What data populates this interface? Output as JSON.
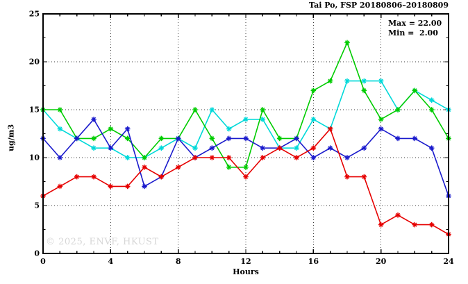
{
  "title": "Tai Po, FSP 20180806–20180809",
  "annotation": {
    "max_label": "Max = 22.00",
    "min_label": "Min =  2.00"
  },
  "watermark": "© 2025, ENVF, HKUST",
  "chart_data": {
    "type": "line",
    "title": "Tai Po, FSP 20180806–20180809",
    "xlabel": "Hours",
    "ylabel": "ug/m3",
    "xlim": [
      0,
      24
    ],
    "ylim": [
      0,
      25
    ],
    "x_major_ticks": [
      0,
      4,
      8,
      12,
      16,
      20,
      24
    ],
    "x_minor_step": 1,
    "y_major_ticks": [
      0,
      5,
      10,
      15,
      20,
      25
    ],
    "y_minor_step": 2.5,
    "grid_x_values": [
      4,
      8,
      12,
      16,
      20
    ],
    "grid_y_values": [
      5,
      10,
      15,
      20
    ],
    "grid": "dotted",
    "legend": "none",
    "marker": "asterisk",
    "stats": {
      "max": 22.0,
      "min": 2.0
    },
    "x": [
      0,
      1,
      2,
      3,
      4,
      5,
      6,
      7,
      8,
      9,
      10,
      11,
      12,
      13,
      14,
      15,
      16,
      17,
      18,
      19,
      20,
      21,
      22,
      23,
      24
    ],
    "series": [
      {
        "name": "cyan",
        "color": "#00d9d9",
        "values": [
          15,
          13,
          12,
          11,
          11,
          10,
          10,
          11,
          12,
          11,
          15,
          13,
          14,
          14,
          11,
          11,
          14,
          13,
          18,
          18,
          18,
          15,
          17,
          16,
          15
        ]
      },
      {
        "name": "green",
        "color": "#00cc00",
        "values": [
          15,
          15,
          12,
          12,
          13,
          12,
          10,
          12,
          12,
          15,
          12,
          9,
          9,
          15,
          12,
          12,
          17,
          18,
          22,
          17,
          14,
          15,
          17,
          15,
          12
        ]
      },
      {
        "name": "blue",
        "color": "#1a1acc",
        "values": [
          12,
          10,
          12,
          14,
          11,
          13,
          7,
          8,
          12,
          10,
          11,
          12,
          12,
          11,
          11,
          12,
          10,
          11,
          10,
          11,
          13,
          12,
          12,
          11,
          6
        ]
      },
      {
        "name": "red",
        "color": "#e60000",
        "values": [
          6,
          7,
          8,
          8,
          7,
          7,
          9,
          8,
          9,
          10,
          10,
          10,
          8,
          10,
          11,
          10,
          11,
          13,
          8,
          8,
          3,
          4,
          3,
          3,
          2
        ]
      }
    ]
  }
}
